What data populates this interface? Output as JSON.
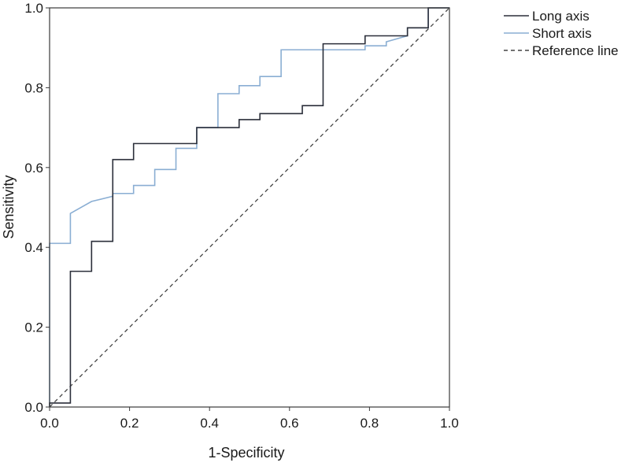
{
  "chart_data": {
    "type": "line",
    "title": "",
    "xlabel": "1-Specificity",
    "ylabel": "Sensitivity",
    "xlim": [
      0,
      1
    ],
    "ylim": [
      0,
      1
    ],
    "xticks": [
      "0.0",
      "0.2",
      "0.4",
      "0.6",
      "0.8",
      "1.0"
    ],
    "yticks": [
      "0.0",
      "0.2",
      "0.4",
      "0.6",
      "0.8",
      "1.0"
    ],
    "grid": false,
    "legend_position": "top-right outside",
    "series": [
      {
        "name": "Long axis",
        "color": "#2b2f3a",
        "dash": false,
        "points": [
          [
            0.0,
            0.0
          ],
          [
            0.0,
            0.01
          ],
          [
            0.052,
            0.01
          ],
          [
            0.052,
            0.34
          ],
          [
            0.105,
            0.34
          ],
          [
            0.105,
            0.415
          ],
          [
            0.158,
            0.415
          ],
          [
            0.158,
            0.62
          ],
          [
            0.21,
            0.62
          ],
          [
            0.21,
            0.66
          ],
          [
            0.368,
            0.66
          ],
          [
            0.368,
            0.7
          ],
          [
            0.474,
            0.7
          ],
          [
            0.474,
            0.72
          ],
          [
            0.526,
            0.72
          ],
          [
            0.526,
            0.735
          ],
          [
            0.632,
            0.735
          ],
          [
            0.632,
            0.755
          ],
          [
            0.684,
            0.755
          ],
          [
            0.684,
            0.91
          ],
          [
            0.789,
            0.91
          ],
          [
            0.789,
            0.93
          ],
          [
            0.895,
            0.93
          ],
          [
            0.895,
            0.95
          ],
          [
            0.947,
            0.95
          ],
          [
            0.947,
            1.0
          ],
          [
            1.0,
            1.0
          ]
        ]
      },
      {
        "name": "Short axis",
        "color": "#8aaed3",
        "dash": false,
        "points": [
          [
            0.0,
            0.0
          ],
          [
            0.0,
            0.41
          ],
          [
            0.052,
            0.41
          ],
          [
            0.052,
            0.485
          ],
          [
            0.105,
            0.515
          ],
          [
            0.158,
            0.528
          ],
          [
            0.158,
            0.535
          ],
          [
            0.21,
            0.535
          ],
          [
            0.21,
            0.555
          ],
          [
            0.263,
            0.555
          ],
          [
            0.263,
            0.595
          ],
          [
            0.316,
            0.595
          ],
          [
            0.316,
            0.648
          ],
          [
            0.368,
            0.648
          ],
          [
            0.368,
            0.7
          ],
          [
            0.421,
            0.7
          ],
          [
            0.421,
            0.785
          ],
          [
            0.474,
            0.785
          ],
          [
            0.474,
            0.805
          ],
          [
            0.526,
            0.805
          ],
          [
            0.526,
            0.828
          ],
          [
            0.579,
            0.828
          ],
          [
            0.579,
            0.895
          ],
          [
            0.789,
            0.895
          ],
          [
            0.789,
            0.905
          ],
          [
            0.842,
            0.905
          ],
          [
            0.842,
            0.915
          ],
          [
            0.895,
            0.93
          ],
          [
            0.895,
            0.95
          ],
          [
            0.947,
            0.95
          ],
          [
            0.947,
            1.0
          ],
          [
            1.0,
            1.0
          ]
        ]
      },
      {
        "name": "Reference line",
        "color": "#444444",
        "dash": true,
        "points": [
          [
            0.0,
            0.0
          ],
          [
            1.0,
            1.0
          ]
        ]
      }
    ]
  }
}
